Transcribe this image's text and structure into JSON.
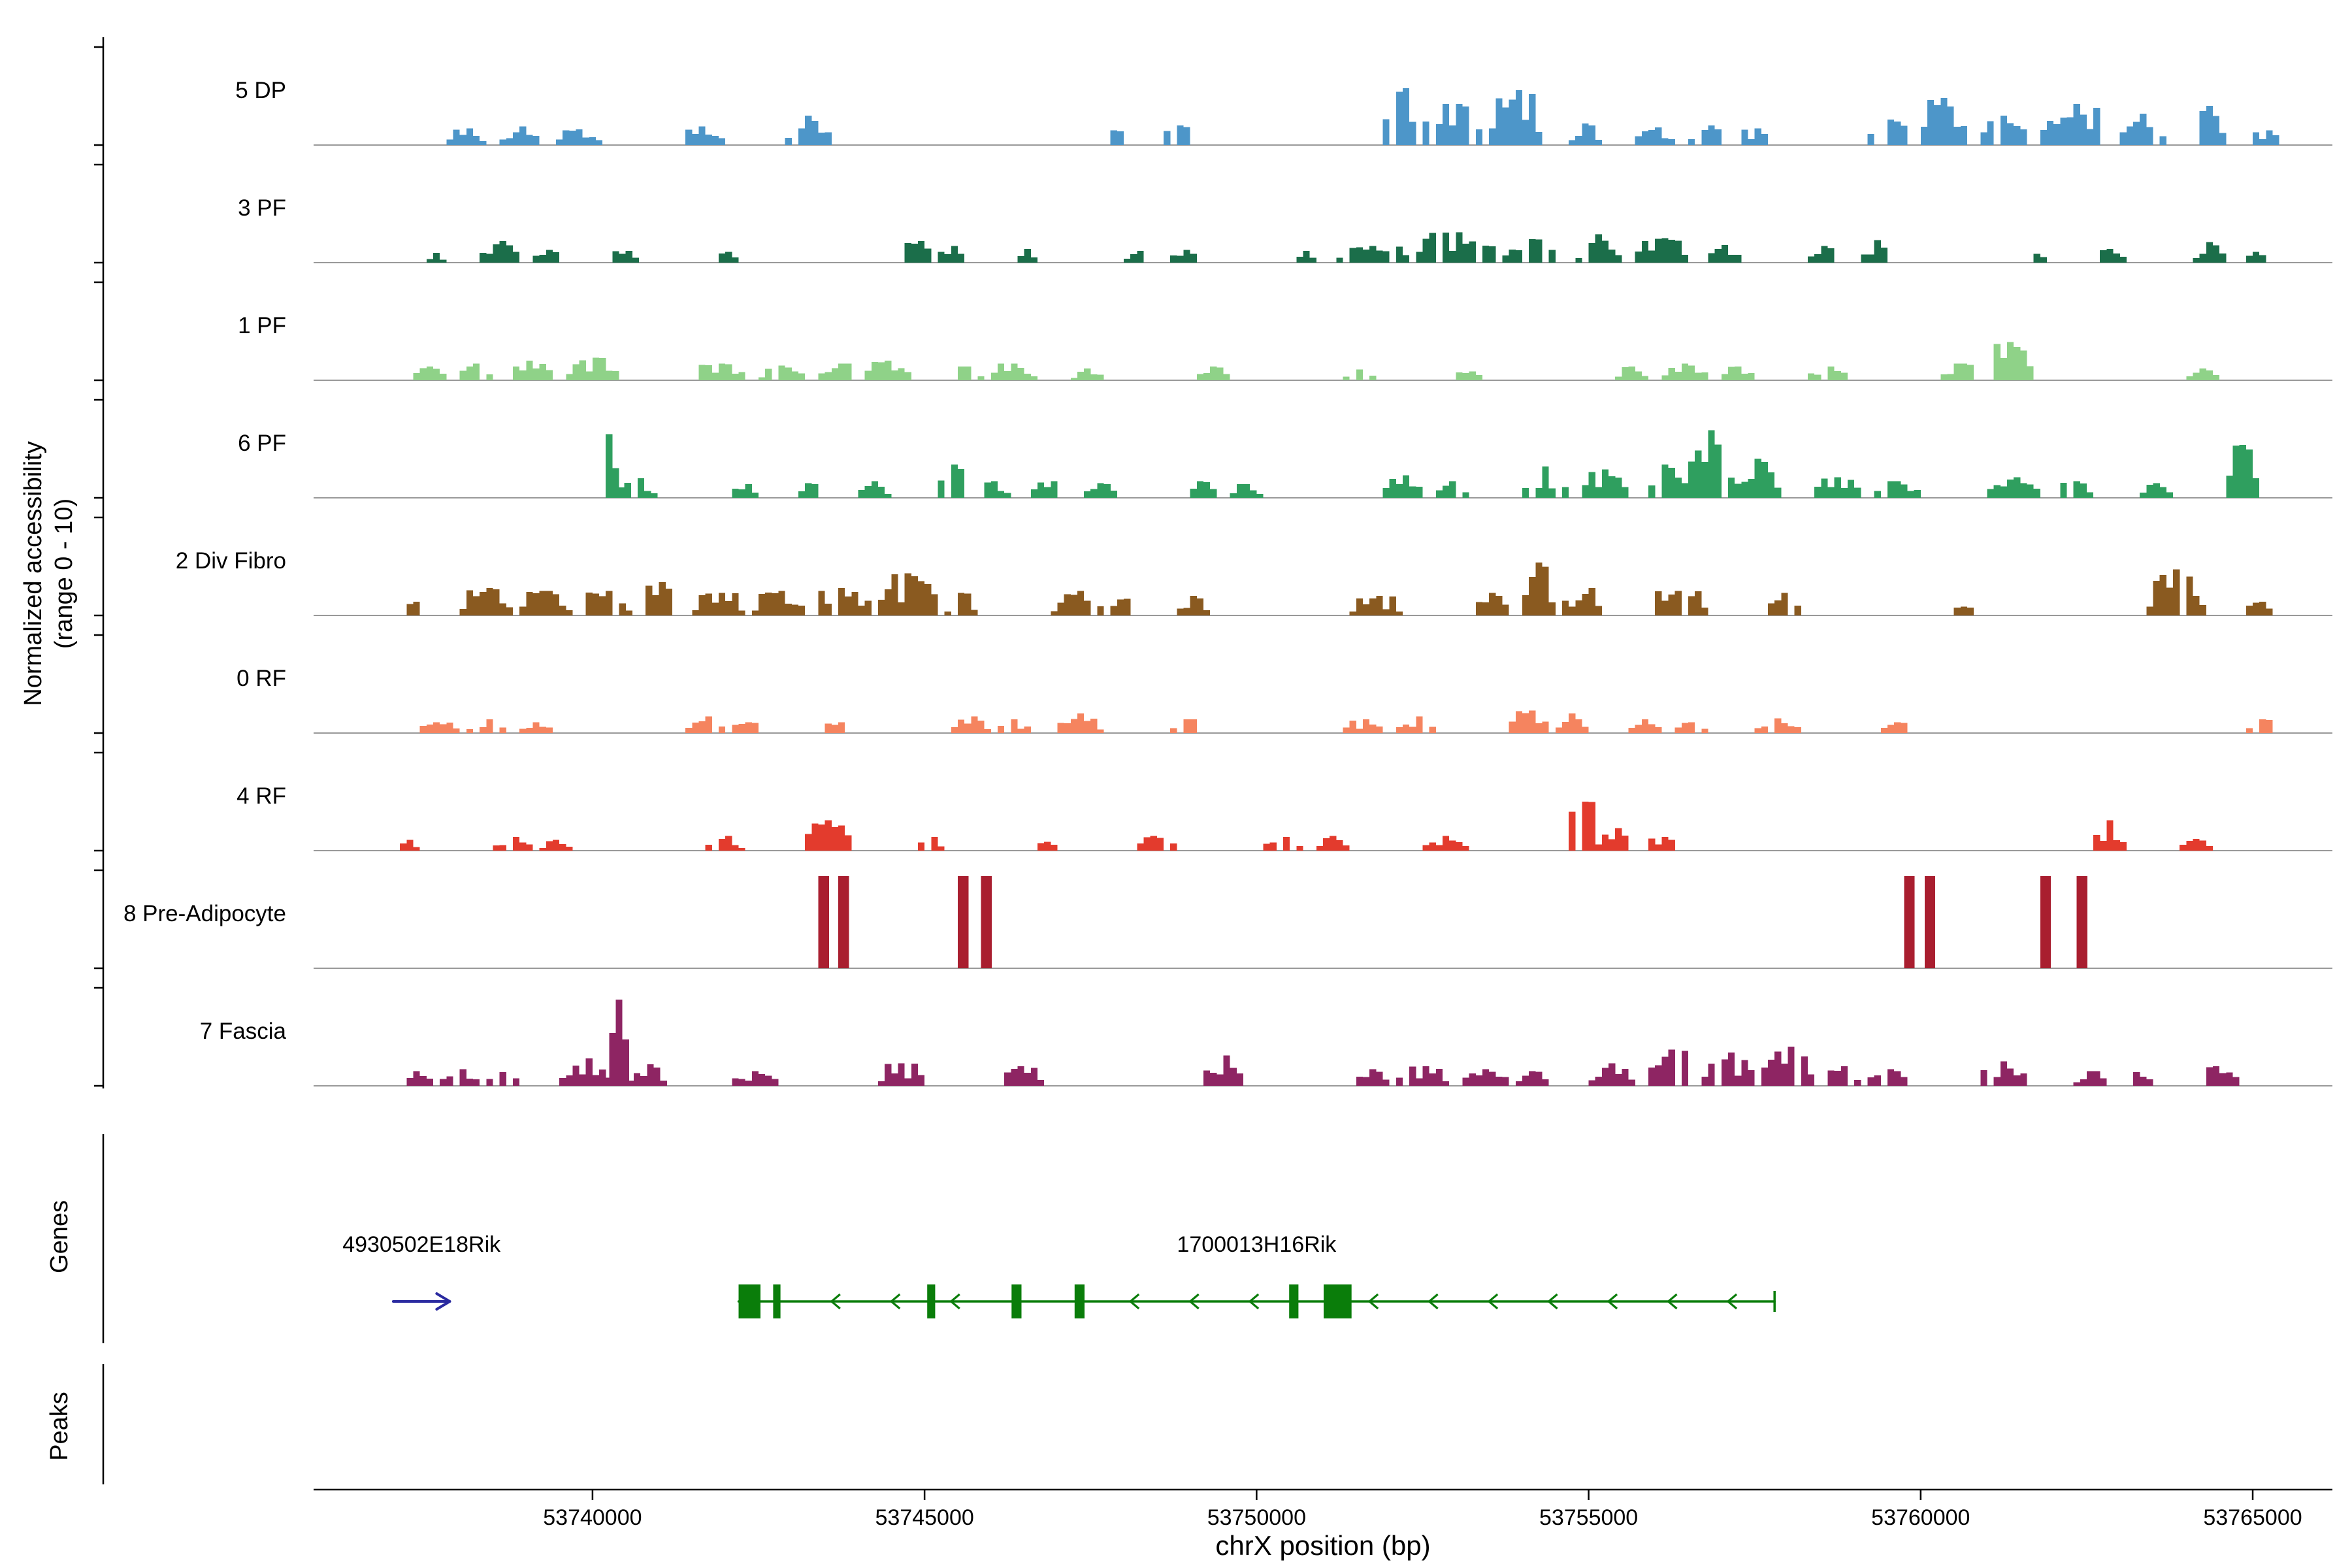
{
  "labels": {
    "y_axis_line1": "Normalized accessibility",
    "y_axis_line2": "(range 0 - 10)",
    "genes": "Genes",
    "peaks": "Peaks"
  },
  "chart_data": {
    "type": "bar",
    "subtype": "genome-coverage-tracks",
    "title": "",
    "xlabel": "chrX position (bp)",
    "ylabel": "Normalized accessibility (range 0 - 10)",
    "x_domain_bp": [
      53735800,
      53766200
    ],
    "x_ticks": [
      53740000,
      53745000,
      53750000,
      53755000,
      53760000,
      53765000
    ],
    "track_y_range": [
      0,
      10
    ],
    "grid": false,
    "tracks": [
      {
        "label": "5 DP",
        "color": "#4d96c9",
        "flat": false,
        "clusters": [
          [
            53737800,
            53738400,
            1.7
          ],
          [
            53738600,
            53739250,
            1.9
          ],
          [
            53739450,
            53740100,
            1.6
          ],
          [
            53741300,
            53742000,
            1.9
          ],
          [
            53742900,
            53743600,
            3.0
          ],
          [
            53747700,
            53747950,
            1.5
          ],
          [
            53748600,
            53748950,
            2.0
          ],
          [
            53751900,
            53752600,
            5.8
          ],
          [
            53752700,
            53753400,
            4.2
          ],
          [
            53753500,
            53754300,
            5.6
          ],
          [
            53754700,
            53755200,
            2.2
          ],
          [
            53755700,
            53756300,
            1.8
          ],
          [
            53756500,
            53757100,
            2.0
          ],
          [
            53757300,
            53757650,
            1.7
          ],
          [
            53759200,
            53759900,
            2.6
          ],
          [
            53760000,
            53760700,
            4.8
          ],
          [
            53760900,
            53761600,
            3.0
          ],
          [
            53761800,
            53762800,
            4.2
          ],
          [
            53763000,
            53763700,
            3.2
          ],
          [
            53764100,
            53764600,
            4.0
          ],
          [
            53765000,
            53765400,
            1.5
          ]
        ]
      },
      {
        "label": "3 PF",
        "color": "#1b6e4a",
        "flat": false,
        "clusters": [
          [
            53737500,
            53737800,
            1.0
          ],
          [
            53738300,
            53738900,
            2.2
          ],
          [
            53739100,
            53739500,
            1.3
          ],
          [
            53740300,
            53740650,
            1.2
          ],
          [
            53741900,
            53742200,
            1.1
          ],
          [
            53744700,
            53745050,
            2.2
          ],
          [
            53745200,
            53745550,
            1.7
          ],
          [
            53746400,
            53746700,
            1.4
          ],
          [
            53748000,
            53748350,
            1.2
          ],
          [
            53748700,
            53749050,
            1.3
          ],
          [
            53750500,
            53750850,
            1.2
          ],
          [
            53751200,
            53752300,
            1.7
          ],
          [
            53752400,
            53753600,
            3.1
          ],
          [
            53753700,
            53754500,
            2.4
          ],
          [
            53754800,
            53755500,
            2.9
          ],
          [
            53755700,
            53756500,
            2.5
          ],
          [
            53756800,
            53757250,
            1.8
          ],
          [
            53758300,
            53758750,
            1.7
          ],
          [
            53759100,
            53759550,
            2.3
          ],
          [
            53761600,
            53761900,
            0.9
          ],
          [
            53762600,
            53763050,
            1.4
          ],
          [
            53764100,
            53764600,
            2.1
          ],
          [
            53764900,
            53765200,
            1.1
          ]
        ]
      },
      {
        "label": "1 PF",
        "color": "#8fd288",
        "flat": false,
        "clusters": [
          [
            53737300,
            53737750,
            1.4
          ],
          [
            53737900,
            53738450,
            1.7
          ],
          [
            53738700,
            53739350,
            2.0
          ],
          [
            53739600,
            53740350,
            2.3
          ],
          [
            53741500,
            53742250,
            1.7
          ],
          [
            53742500,
            53743150,
            1.5
          ],
          [
            53743400,
            53743950,
            1.7
          ],
          [
            53744100,
            53744750,
            2.0
          ],
          [
            53745400,
            53745850,
            1.4
          ],
          [
            53746000,
            53746650,
            1.7
          ],
          [
            53747200,
            53747650,
            1.2
          ],
          [
            53749100,
            53749550,
            1.4
          ],
          [
            53751300,
            53751750,
            1.1
          ],
          [
            53753000,
            53753350,
            0.9
          ],
          [
            53755400,
            53755850,
            1.4
          ],
          [
            53756100,
            53756750,
            1.7
          ],
          [
            53757000,
            53757450,
            1.4
          ],
          [
            53758300,
            53758850,
            1.4
          ],
          [
            53760300,
            53760850,
            1.7
          ],
          [
            53761000,
            53761700,
            3.9
          ],
          [
            53764000,
            53764500,
            1.2
          ]
        ]
      },
      {
        "label": "6 PF",
        "color": "#2f9f5f",
        "flat": false,
        "clusters": [
          [
            53740100,
            53740380,
            6.5
          ],
          [
            53740380,
            53740950,
            2.0
          ],
          [
            53742100,
            53742450,
            1.4
          ],
          [
            53743000,
            53743350,
            1.5
          ],
          [
            53744000,
            53744450,
            1.7
          ],
          [
            53745200,
            53745550,
            3.4
          ],
          [
            53745800,
            53746250,
            1.7
          ],
          [
            53746600,
            53747150,
            1.7
          ],
          [
            53747400,
            53747850,
            1.5
          ],
          [
            53748900,
            53749350,
            1.7
          ],
          [
            53749600,
            53750050,
            1.4
          ],
          [
            53751900,
            53752450,
            2.3
          ],
          [
            53752700,
            53753150,
            1.7
          ],
          [
            53754000,
            53754650,
            3.2
          ],
          [
            53754900,
            53755550,
            2.9
          ],
          [
            53755800,
            53756450,
            3.4
          ],
          [
            53756500,
            53757150,
            6.9
          ],
          [
            53757200,
            53757850,
            4.0
          ],
          [
            53758400,
            53759050,
            2.1
          ],
          [
            53759300,
            53759950,
            1.7
          ],
          [
            53761000,
            53761750,
            2.1
          ],
          [
            53762000,
            53762550,
            1.7
          ],
          [
            53763300,
            53763750,
            1.5
          ],
          [
            53764600,
            53765050,
            5.4
          ]
        ]
      },
      {
        "label": "2 Div Fibro",
        "color": "#8a5a20",
        "flat": false,
        "clusters": [
          [
            53737200,
            53737500,
            1.4
          ],
          [
            53738000,
            53738750,
            2.8
          ],
          [
            53738900,
            53739650,
            2.5
          ],
          [
            53739800,
            53740550,
            2.5
          ],
          [
            53740800,
            53741150,
            3.4
          ],
          [
            53741500,
            53742250,
            2.3
          ],
          [
            53742400,
            53743150,
            2.5
          ],
          [
            53743300,
            53744150,
            2.8
          ],
          [
            53744300,
            53745150,
            4.3
          ],
          [
            53745300,
            53745750,
            2.3
          ],
          [
            53746900,
            53747650,
            2.5
          ],
          [
            53747800,
            53748150,
            1.7
          ],
          [
            53748800,
            53749250,
            2.0
          ],
          [
            53751400,
            53752150,
            2.0
          ],
          [
            53753200,
            53753750,
            2.3
          ],
          [
            53754000,
            53754450,
            5.4
          ],
          [
            53754600,
            53755350,
            2.8
          ],
          [
            53755900,
            53756750,
            2.5
          ],
          [
            53757700,
            53758150,
            2.3
          ],
          [
            53760500,
            53760800,
            0.9
          ],
          [
            53763400,
            53764250,
            4.7
          ],
          [
            53764900,
            53765250,
            1.4
          ]
        ]
      },
      {
        "label": "0 RF",
        "color": "#f5845f",
        "flat": false,
        "clusters": [
          [
            53737300,
            53737950,
            1.1
          ],
          [
            53738100,
            53738650,
            1.4
          ],
          [
            53738900,
            53739400,
            1.1
          ],
          [
            53741400,
            53741950,
            1.7
          ],
          [
            53742100,
            53742450,
            1.1
          ],
          [
            53743500,
            53743850,
            1.1
          ],
          [
            53745400,
            53745950,
            1.7
          ],
          [
            53746100,
            53746550,
            1.4
          ],
          [
            53747000,
            53747650,
            2.0
          ],
          [
            53748700,
            53749050,
            1.4
          ],
          [
            53751300,
            53751850,
            1.4
          ],
          [
            53752100,
            53752650,
            1.7
          ],
          [
            53753800,
            53754350,
            2.3
          ],
          [
            53754500,
            53754950,
            2.0
          ],
          [
            53755600,
            53756050,
            1.4
          ],
          [
            53756300,
            53756750,
            1.1
          ],
          [
            53757500,
            53758150,
            1.5
          ],
          [
            53759400,
            53759750,
            1.1
          ],
          [
            53764900,
            53765350,
            1.4
          ]
        ]
      },
      {
        "label": "4 RF",
        "color": "#e33b2d",
        "flat": false,
        "clusters": [
          [
            53737100,
            53737350,
            1.1
          ],
          [
            53738500,
            53739050,
            1.4
          ],
          [
            53739200,
            53739650,
            1.1
          ],
          [
            53741700,
            53742250,
            1.5
          ],
          [
            53743100,
            53743850,
            3.1
          ],
          [
            53744900,
            53745250,
            1.4
          ],
          [
            53746700,
            53746950,
            0.9
          ],
          [
            53748100,
            53748750,
            1.5
          ],
          [
            53750100,
            53750650,
            1.4
          ],
          [
            53750900,
            53751350,
            1.5
          ],
          [
            53752400,
            53753150,
            1.5
          ],
          [
            53754700,
            53755050,
            5.0
          ],
          [
            53755100,
            53755650,
            2.3
          ],
          [
            53755900,
            53756250,
            1.4
          ],
          [
            53762600,
            53763050,
            3.1
          ],
          [
            53763900,
            53764350,
            1.2
          ]
        ]
      },
      {
        "label": "8 Pre-Adipocyte",
        "color": "#a91e2f",
        "flat": true,
        "clusters": [
          [
            53743400,
            53743560,
            9.4
          ],
          [
            53743700,
            53743860,
            9.4
          ],
          [
            53745500,
            53745660,
            9.4
          ],
          [
            53745850,
            53746010,
            9.4
          ],
          [
            53759750,
            53759910,
            9.4
          ],
          [
            53760060,
            53760220,
            9.4
          ],
          [
            53761800,
            53761960,
            9.4
          ],
          [
            53762350,
            53762510,
            9.4
          ]
        ]
      },
      {
        "label": "7 Fascia",
        "color": "#8e2563",
        "flat": false,
        "clusters": [
          [
            53737100,
            53737550,
            1.5
          ],
          [
            53737700,
            53738250,
            1.7
          ],
          [
            53738400,
            53738850,
            1.4
          ],
          [
            53739500,
            53740250,
            2.8
          ],
          [
            53740250,
            53740520,
            8.8
          ],
          [
            53740520,
            53741150,
            2.2
          ],
          [
            53742100,
            53742750,
            1.5
          ],
          [
            53744300,
            53744950,
            2.3
          ],
          [
            53746100,
            53746750,
            2.0
          ],
          [
            53749200,
            53749750,
            3.1
          ],
          [
            53751400,
            53751950,
            1.7
          ],
          [
            53752100,
            53752850,
            2.0
          ],
          [
            53753100,
            53753750,
            1.7
          ],
          [
            53753900,
            53754350,
            1.5
          ],
          [
            53755000,
            53755650,
            2.3
          ],
          [
            53755900,
            53756550,
            3.7
          ],
          [
            53756700,
            53757450,
            3.4
          ],
          [
            53757600,
            53758350,
            4.0
          ],
          [
            53758500,
            53759050,
            2.0
          ],
          [
            53759200,
            53759750,
            1.7
          ],
          [
            53760800,
            53761550,
            2.5
          ],
          [
            53762300,
            53762750,
            1.5
          ],
          [
            53763000,
            53763450,
            1.4
          ],
          [
            53764100,
            53764750,
            2.0
          ]
        ]
      }
    ],
    "genes": {
      "items": [
        {
          "name": "4930502E18Rik",
          "strand": "+",
          "color": "#2a2aa0",
          "start": 53737000,
          "end": 53737850,
          "exons": []
        },
        {
          "name": "1700013H16Rik",
          "strand": "-",
          "color": "#0a7d0a",
          "start": 53742200,
          "end": 53757800,
          "exons": [
            [
              53742200,
              53742530
            ],
            [
              53742720,
              53742830
            ],
            [
              53745040,
              53745160
            ],
            [
              53746310,
              53746460
            ],
            [
              53747260,
              53747410
            ],
            [
              53750490,
              53750630
            ],
            [
              53751010,
              53751430
            ]
          ]
        }
      ]
    },
    "peaks": {
      "items": []
    }
  }
}
